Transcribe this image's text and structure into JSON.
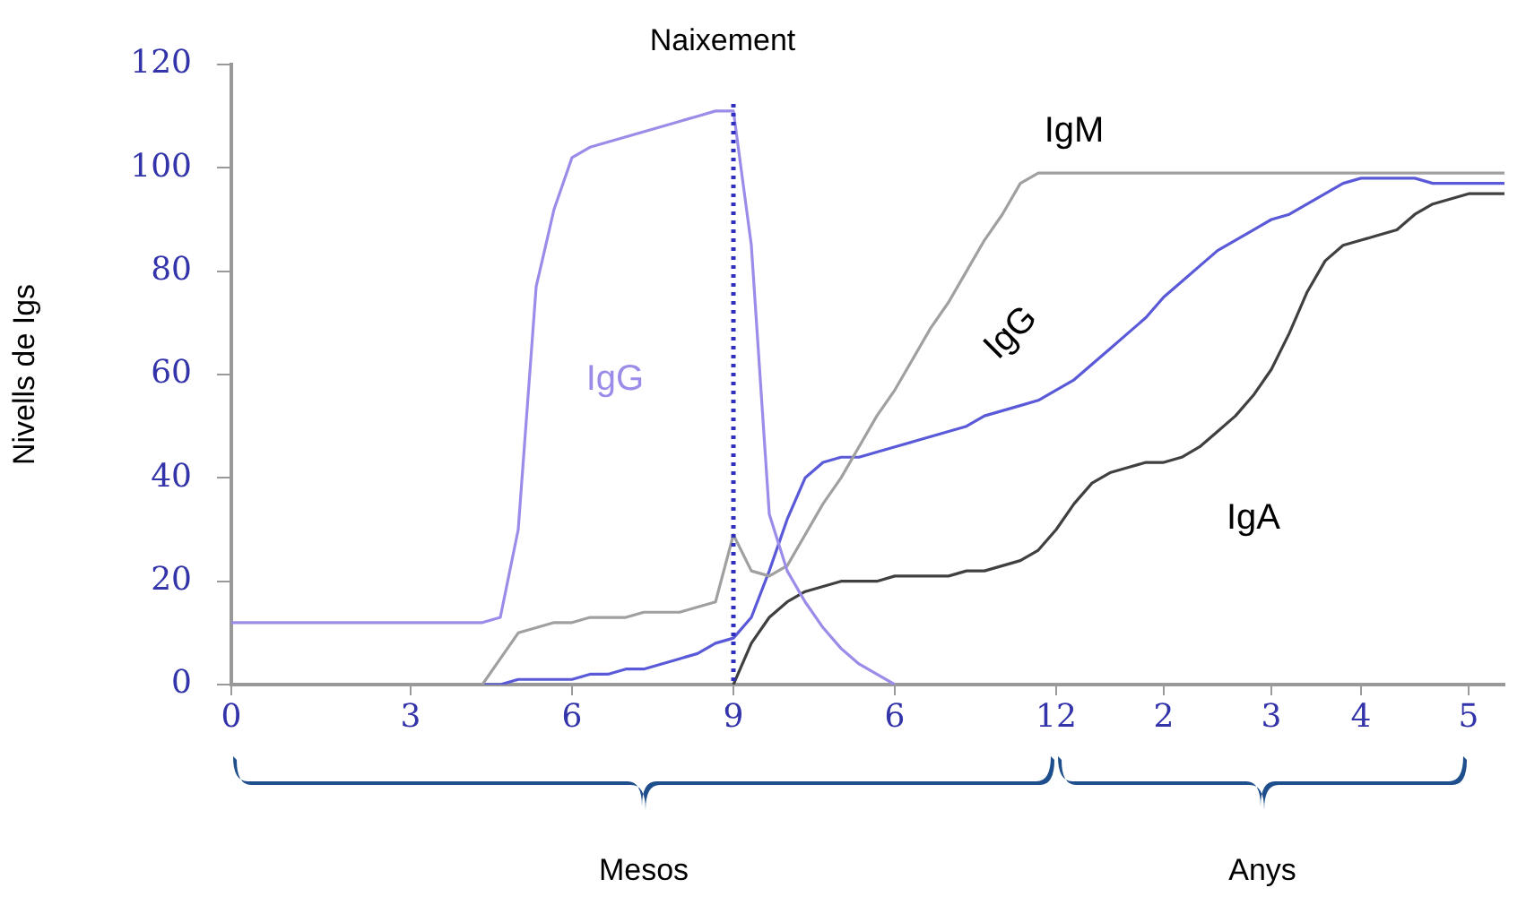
{
  "chart_data": {
    "type": "line",
    "ylabel": "Nivells de Igs",
    "categories": [
      "0",
      null,
      null,
      null,
      null,
      null,
      null,
      null,
      null,
      null,
      "3",
      null,
      null,
      null,
      null,
      null,
      null,
      null,
      null,
      "6",
      null,
      null,
      null,
      null,
      null,
      null,
      null,
      null,
      "9",
      null,
      null,
      null,
      null,
      null,
      null,
      null,
      null,
      "6",
      null,
      null,
      null,
      null,
      null,
      null,
      null,
      null,
      "12",
      null,
      null,
      null,
      null,
      null,
      "2",
      null,
      null,
      null,
      null,
      null,
      "3",
      null,
      null,
      null,
      null,
      "4",
      null,
      null,
      null,
      null,
      null,
      "5",
      null,
      null
    ],
    "ylim": [
      0,
      120
    ],
    "yticks": [
      0,
      20,
      40,
      60,
      80,
      100,
      120
    ],
    "grid": false,
    "legend": false,
    "marker": "none",
    "line_style": "solid",
    "series": [
      {
        "name": "IgG",
        "color": "#9a8ce8",
        "values": [
          12,
          12,
          12,
          12,
          12,
          12,
          12,
          12,
          12,
          12,
          12,
          12,
          12,
          12,
          12,
          13,
          30,
          77,
          92,
          102,
          104,
          105,
          106,
          107,
          108,
          109,
          110,
          111,
          111,
          85,
          33,
          22,
          16,
          11,
          7,
          4,
          2,
          0,
          null,
          null,
          null,
          null,
          null,
          null,
          null,
          null,
          null,
          null,
          null,
          null,
          null,
          null,
          null,
          null,
          null,
          null,
          null,
          null,
          null,
          null,
          null,
          null,
          null,
          null,
          null,
          null,
          null,
          null,
          null,
          null,
          null,
          null
        ]
      },
      {
        "name": "IgM",
        "color": "#a0a0a0",
        "values": [
          null,
          null,
          null,
          null,
          null,
          null,
          null,
          null,
          null,
          null,
          null,
          null,
          null,
          null,
          0,
          5,
          10,
          11,
          12,
          12,
          13,
          13,
          13,
          14,
          14,
          14,
          15,
          16,
          29,
          22,
          21,
          23,
          29,
          35,
          40,
          46,
          52,
          57,
          63,
          69,
          74,
          80,
          86,
          91,
          97,
          99,
          99,
          99,
          99,
          99,
          99,
          99,
          99,
          99,
          99,
          99,
          99,
          99,
          99,
          99,
          99,
          99,
          99,
          99,
          99,
          99,
          99,
          99,
          99,
          99,
          99,
          99
        ]
      },
      {
        "name": "IgG",
        "color": "#5a5ad8",
        "values": [
          null,
          null,
          null,
          null,
          null,
          null,
          null,
          null,
          null,
          null,
          null,
          null,
          null,
          null,
          0,
          0,
          1,
          1,
          1,
          1,
          2,
          2,
          3,
          3,
          4,
          5,
          6,
          8,
          9,
          13,
          22,
          32,
          40,
          43,
          44,
          44,
          45,
          46,
          47,
          48,
          49,
          50,
          52,
          53,
          54,
          55,
          57,
          59,
          62,
          65,
          68,
          71,
          75,
          78,
          81,
          84,
          86,
          88,
          90,
          91,
          93,
          95,
          97,
          98,
          98,
          98,
          98,
          97,
          97,
          97,
          97,
          97
        ]
      },
      {
        "name": "IgA",
        "color": "#404040",
        "values": [
          null,
          null,
          null,
          null,
          null,
          null,
          null,
          null,
          null,
          null,
          null,
          null,
          null,
          null,
          null,
          null,
          null,
          null,
          null,
          null,
          null,
          null,
          null,
          null,
          null,
          null,
          null,
          null,
          0,
          8,
          13,
          16,
          18,
          19,
          20,
          20,
          20,
          21,
          21,
          21,
          21,
          22,
          22,
          23,
          24,
          26,
          30,
          35,
          39,
          41,
          42,
          43,
          43,
          44,
          46,
          49,
          52,
          56,
          61,
          68,
          76,
          82,
          85,
          86,
          87,
          88,
          91,
          93,
          94,
          95,
          95,
          95
        ]
      }
    ],
    "ref_lines": [
      {
        "axis": "x",
        "value": "9",
        "label": "Naixement",
        "color": "#3030c0",
        "line_style": "dotted"
      }
    ],
    "annotations": [
      "Mesos",
      "Anys"
    ]
  }
}
